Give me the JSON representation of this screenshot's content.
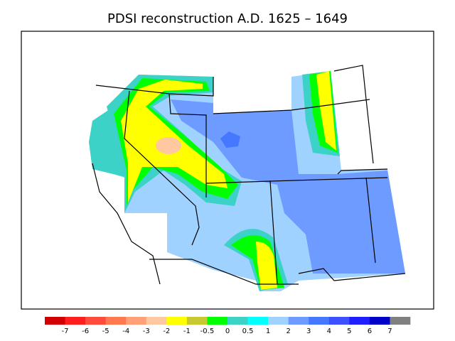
{
  "title": "PDSI reconstruction A.D. 1625 – 1649",
  "colorbar": {
    "labels": [
      "-7",
      "-6",
      "-5",
      "-4",
      "-3",
      "-2",
      "-1",
      "-0.5",
      "0",
      "0.5",
      "1",
      "2",
      "3",
      "4",
      "5",
      "6",
      "7"
    ],
    "colors": [
      "#d20000",
      "#ff1e1e",
      "#ff4b3c",
      "#ff7850",
      "#ffa078",
      "#ffc8a0",
      "#ffff00",
      "#c8c832",
      "#00ff00",
      "#3cd2c8",
      "#00ffff",
      "#a0d2ff",
      "#6e9bff",
      "#4678ff",
      "#3c50ff",
      "#1e1eff",
      "#0000c8",
      "#808080"
    ]
  }
}
